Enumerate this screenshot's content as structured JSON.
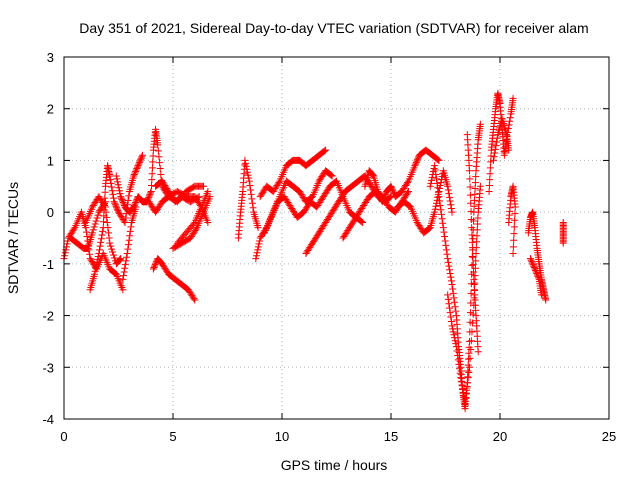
{
  "chart_data": {
    "type": "scatter",
    "marker": "plus",
    "title": "Day 351 of 2021, Sidereal Day-to-day VTEC variation (SDTVAR) for receiver alam",
    "xlabel": "GPS time / hours",
    "ylabel": "SDTVAR / TECUs",
    "xlim": [
      0,
      25
    ],
    "ylim": [
      -4,
      3
    ],
    "x_ticks": [
      0,
      5,
      10,
      15,
      20,
      25
    ],
    "y_ticks": [
      -4,
      -3,
      -2,
      -1,
      0,
      1,
      2,
      3
    ],
    "grid": true,
    "series_color": "#ff0000",
    "segments": [
      [
        [
          0.0,
          -0.9
        ],
        [
          0.2,
          -0.5
        ],
        [
          0.5,
          -0.3
        ],
        [
          0.8,
          0.0
        ],
        [
          1.0,
          -0.3
        ],
        [
          1.2,
          -0.9
        ],
        [
          1.5,
          -1.1
        ],
        [
          1.8,
          -0.8
        ],
        [
          2.1,
          -1.1
        ],
        [
          2.4,
          -1.2
        ],
        [
          2.7,
          -1.5
        ]
      ],
      [
        [
          0.3,
          -0.5
        ],
        [
          0.6,
          -0.6
        ],
        [
          0.9,
          -0.7
        ],
        [
          1.1,
          -0.7
        ],
        [
          1.3,
          -0.4
        ],
        [
          1.6,
          0.0
        ],
        [
          1.9,
          0.2
        ]
      ],
      [
        [
          1.0,
          -0.2
        ],
        [
          1.3,
          0.1
        ],
        [
          1.6,
          0.3
        ],
        [
          1.9,
          0.1
        ],
        [
          2.1,
          -0.6
        ],
        [
          2.4,
          -1.0
        ],
        [
          2.6,
          -0.9
        ]
      ],
      [
        [
          1.2,
          -1.5
        ],
        [
          1.4,
          -1.2
        ],
        [
          1.6,
          -0.8
        ],
        [
          1.8,
          -0.3
        ],
        [
          1.9,
          0.5
        ],
        [
          2.0,
          0.9
        ],
        [
          2.1,
          0.7
        ],
        [
          2.3,
          0.2
        ],
        [
          2.5,
          0.0
        ],
        [
          2.8,
          -0.2
        ],
        [
          3.0,
          0.4
        ],
        [
          3.2,
          0.7
        ],
        [
          3.4,
          0.9
        ],
        [
          3.6,
          1.1
        ]
      ],
      [
        [
          2.4,
          0.7
        ],
        [
          2.6,
          0.3
        ],
        [
          2.8,
          0.1
        ],
        [
          3.0,
          0.0
        ],
        [
          3.2,
          0.1
        ],
        [
          3.4,
          0.3
        ],
        [
          3.6,
          0.2
        ],
        [
          3.8,
          0.2
        ],
        [
          4.0,
          0.4
        ],
        [
          4.1,
          1.2
        ],
        [
          4.2,
          1.6
        ],
        [
          4.3,
          1.3
        ],
        [
          4.5,
          0.5
        ],
        [
          4.8,
          0.3
        ],
        [
          5.2,
          0.4
        ],
        [
          5.6,
          0.3
        ],
        [
          6.0,
          0.3
        ],
        [
          6.3,
          0.1
        ],
        [
          6.6,
          -0.2
        ]
      ],
      [
        [
          2.7,
          -1.3
        ],
        [
          2.9,
          -0.8
        ],
        [
          3.1,
          -0.2
        ],
        [
          3.3,
          0.1
        ]
      ],
      [
        [
          3.9,
          0.2
        ],
        [
          4.2,
          0.0
        ],
        [
          4.5,
          0.2
        ],
        [
          4.8,
          0.3
        ],
        [
          5.2,
          0.2
        ],
        [
          5.6,
          0.4
        ],
        [
          6.0,
          0.5
        ],
        [
          6.4,
          0.5
        ]
      ],
      [
        [
          4.2,
          0.5
        ],
        [
          4.5,
          0.6
        ],
        [
          4.8,
          0.4
        ],
        [
          5.1,
          0.2
        ],
        [
          5.4,
          0.3
        ],
        [
          5.8,
          0.2
        ],
        [
          6.2,
          0.3
        ]
      ],
      [
        [
          4.1,
          -1.1
        ],
        [
          4.3,
          -0.9
        ],
        [
          4.5,
          -1.0
        ],
        [
          4.8,
          -1.2
        ],
        [
          5.1,
          -1.3
        ],
        [
          5.4,
          -1.4
        ],
        [
          5.7,
          -1.5
        ],
        [
          6.0,
          -1.7
        ]
      ],
      [
        [
          5.0,
          -0.7
        ],
        [
          5.4,
          -0.6
        ],
        [
          5.8,
          -0.5
        ],
        [
          6.1,
          -0.3
        ],
        [
          6.4,
          0.0
        ],
        [
          6.7,
          0.3
        ]
      ],
      [
        [
          5.2,
          -0.6
        ],
        [
          5.6,
          -0.4
        ],
        [
          6.0,
          -0.2
        ],
        [
          6.3,
          0.1
        ],
        [
          6.6,
          0.4
        ]
      ],
      [
        [
          8.0,
          -0.5
        ],
        [
          8.1,
          0.0
        ],
        [
          8.2,
          0.4
        ],
        [
          8.3,
          1.0
        ],
        [
          8.5,
          0.6
        ],
        [
          8.7,
          0.0
        ],
        [
          8.9,
          -0.3
        ]
      ],
      [
        [
          8.8,
          -0.9
        ],
        [
          9.0,
          -0.5
        ],
        [
          9.3,
          -0.3
        ],
        [
          9.6,
          0.0
        ],
        [
          9.9,
          0.3
        ],
        [
          10.2,
          0.6
        ],
        [
          10.5,
          0.5
        ],
        [
          10.8,
          0.4
        ],
        [
          11.1,
          0.2
        ],
        [
          11.4,
          0.3
        ],
        [
          11.7,
          0.6
        ],
        [
          12.0,
          0.8
        ],
        [
          12.3,
          0.7
        ]
      ],
      [
        [
          9.0,
          0.3
        ],
        [
          9.3,
          0.5
        ],
        [
          9.6,
          0.4
        ],
        [
          9.9,
          0.6
        ],
        [
          10.2,
          0.9
        ],
        [
          10.5,
          1.0
        ],
        [
          10.8,
          1.0
        ],
        [
          11.1,
          0.9
        ],
        [
          11.4,
          1.0
        ],
        [
          11.7,
          1.1
        ],
        [
          12.0,
          1.2
        ]
      ],
      [
        [
          9.2,
          -0.4
        ],
        [
          9.5,
          -0.1
        ],
        [
          9.8,
          0.2
        ],
        [
          10.1,
          0.3
        ],
        [
          10.4,
          0.1
        ],
        [
          10.7,
          -0.1
        ],
        [
          11.0,
          0.0
        ],
        [
          11.3,
          0.2
        ],
        [
          11.6,
          0.1
        ],
        [
          11.9,
          0.3
        ],
        [
          12.2,
          0.5
        ],
        [
          12.5,
          0.6
        ],
        [
          12.8,
          0.3
        ],
        [
          13.1,
          0.0
        ],
        [
          13.4,
          -0.1
        ],
        [
          13.7,
          -0.2
        ]
      ],
      [
        [
          11.1,
          -0.8
        ],
        [
          11.4,
          -0.6
        ],
        [
          11.7,
          -0.4
        ],
        [
          12.0,
          -0.2
        ],
        [
          12.3,
          0.0
        ],
        [
          12.6,
          0.2
        ],
        [
          12.9,
          0.4
        ],
        [
          13.2,
          0.5
        ],
        [
          13.5,
          0.6
        ],
        [
          13.8,
          0.7
        ],
        [
          14.1,
          0.5
        ],
        [
          14.4,
          0.3
        ],
        [
          14.7,
          0.2
        ],
        [
          15.0,
          0.3
        ]
      ],
      [
        [
          12.8,
          -0.5
        ],
        [
          13.1,
          -0.3
        ],
        [
          13.4,
          -0.1
        ],
        [
          13.7,
          0.1
        ],
        [
          14.0,
          0.3
        ],
        [
          14.3,
          0.4
        ],
        [
          14.6,
          0.3
        ],
        [
          14.9,
          0.1
        ],
        [
          15.2,
          0.0
        ],
        [
          15.5,
          0.2
        ],
        [
          15.8,
          0.4
        ]
      ],
      [
        [
          13.8,
          0.5
        ],
        [
          14.0,
          0.8
        ],
        [
          14.2,
          0.7
        ],
        [
          14.4,
          0.4
        ],
        [
          14.6,
          0.2
        ],
        [
          14.8,
          0.4
        ],
        [
          15.0,
          0.5
        ],
        [
          15.2,
          0.3
        ],
        [
          15.5,
          0.4
        ],
        [
          15.8,
          0.6
        ],
        [
          16.1,
          0.9
        ],
        [
          16.3,
          1.1
        ],
        [
          16.6,
          1.2
        ],
        [
          16.9,
          1.1
        ],
        [
          17.2,
          1.0
        ]
      ],
      [
        [
          15.3,
          0.1
        ],
        [
          15.6,
          0.2
        ],
        [
          15.9,
          0.1
        ],
        [
          16.2,
          -0.2
        ],
        [
          16.5,
          -0.4
        ],
        [
          16.8,
          -0.3
        ],
        [
          17.0,
          0.0
        ],
        [
          17.2,
          0.4
        ],
        [
          17.4,
          0.8
        ],
        [
          17.6,
          0.5
        ],
        [
          17.8,
          0.0
        ]
      ],
      [
        [
          16.8,
          0.5
        ],
        [
          17.0,
          0.9
        ],
        [
          17.2,
          0.3
        ],
        [
          17.4,
          -0.3
        ],
        [
          17.6,
          -0.9
        ],
        [
          17.8,
          -1.4
        ],
        [
          18.0,
          -2.0
        ],
        [
          18.1,
          -2.6
        ],
        [
          18.2,
          -3.0
        ],
        [
          18.3,
          -3.5
        ],
        [
          18.4,
          -3.8
        ],
        [
          18.5,
          -3.3
        ],
        [
          18.6,
          -2.5
        ],
        [
          18.7,
          -1.2
        ],
        [
          18.8,
          0.0
        ],
        [
          18.9,
          0.8
        ],
        [
          19.0,
          1.4
        ],
        [
          19.1,
          1.7
        ]
      ],
      [
        [
          17.6,
          -1.6
        ],
        [
          17.8,
          -2.2
        ],
        [
          18.0,
          -2.6
        ],
        [
          18.2,
          -3.2
        ],
        [
          18.4,
          -3.7
        ],
        [
          18.6,
          -3.0
        ],
        [
          18.8,
          -1.8
        ],
        [
          18.9,
          -0.8
        ],
        [
          19.0,
          0.0
        ],
        [
          19.1,
          0.5
        ]
      ],
      [
        [
          18.5,
          1.5
        ],
        [
          18.6,
          0.8
        ],
        [
          18.7,
          -0.3
        ],
        [
          18.8,
          -1.3
        ],
        [
          18.9,
          -2.0
        ],
        [
          19.0,
          -2.7
        ]
      ],
      [
        [
          19.5,
          0.4
        ],
        [
          19.6,
          1.2
        ],
        [
          19.7,
          1.6
        ],
        [
          19.8,
          2.0
        ],
        [
          19.9,
          2.3
        ],
        [
          20.0,
          2.1
        ],
        [
          20.1,
          1.6
        ],
        [
          20.2,
          1.1
        ],
        [
          20.3,
          1.4
        ],
        [
          20.5,
          1.9
        ],
        [
          20.6,
          2.2
        ]
      ],
      [
        [
          19.7,
          1.0
        ],
        [
          19.9,
          1.5
        ],
        [
          20.1,
          1.8
        ],
        [
          20.3,
          1.5
        ],
        [
          20.4,
          1.2
        ]
      ],
      [
        [
          20.4,
          -0.2
        ],
        [
          20.5,
          0.3
        ],
        [
          20.6,
          0.5
        ],
        [
          20.7,
          0.1
        ],
        [
          20.6,
          -0.8
        ]
      ],
      [
        [
          21.3,
          -0.4
        ],
        [
          21.4,
          -0.1
        ],
        [
          21.5,
          0.0
        ],
        [
          21.6,
          -0.3
        ],
        [
          21.7,
          -0.7
        ],
        [
          21.8,
          -1.0
        ],
        [
          21.9,
          -1.3
        ],
        [
          22.0,
          -1.5
        ],
        [
          22.1,
          -1.7
        ]
      ],
      [
        [
          21.4,
          -0.9
        ],
        [
          21.6,
          -1.1
        ],
        [
          21.8,
          -1.3
        ],
        [
          21.9,
          -1.6
        ]
      ],
      [
        [
          22.9,
          -0.2
        ],
        [
          22.9,
          -0.4
        ],
        [
          22.9,
          -0.6
        ]
      ]
    ]
  }
}
